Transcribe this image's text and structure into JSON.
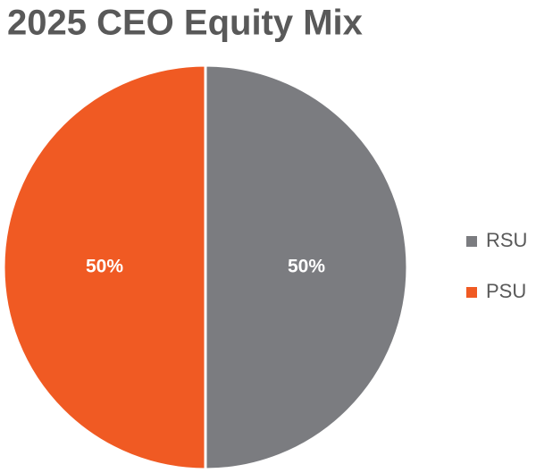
{
  "chart_data": {
    "type": "pie",
    "title": "2025 CEO Equity Mix",
    "categories": [
      "RSU",
      "PSU"
    ],
    "values": [
      50,
      50
    ],
    "value_labels": [
      "50%",
      "50%"
    ],
    "colors": [
      "#7b7c80",
      "#f05a23"
    ],
    "legend": "right"
  }
}
